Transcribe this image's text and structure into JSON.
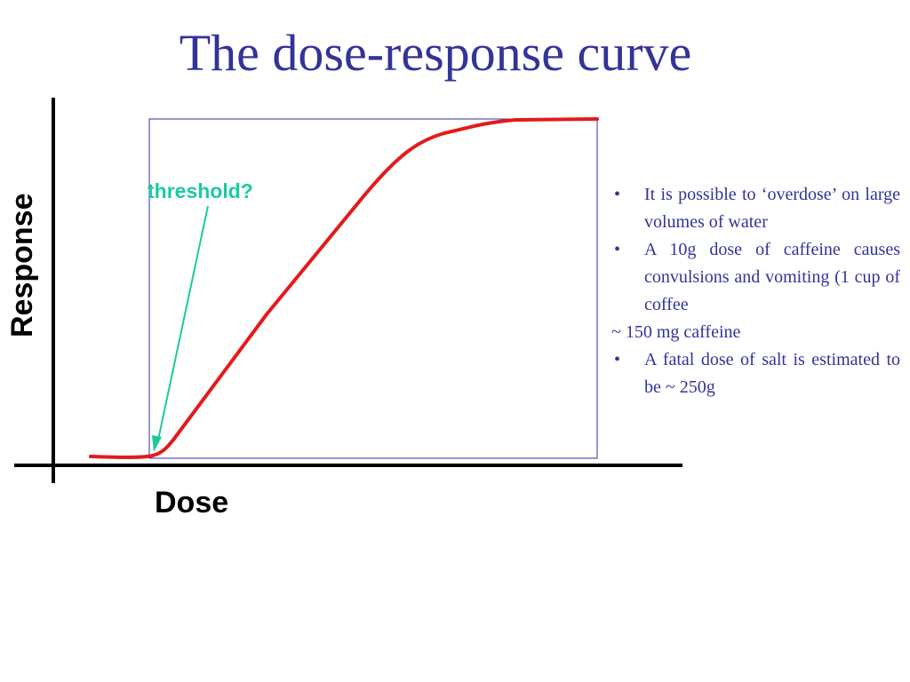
{
  "title": "The dose-response curve",
  "axes": {
    "x_label": "Dose",
    "y_label": "Response"
  },
  "annotation": {
    "label": "threshold?"
  },
  "notes": [
    {
      "bullet": "•",
      "text": "It is possible to ‘overdose’ on large volumes of water"
    },
    {
      "bullet": "•",
      "text": "A 10g dose of caffeine causes convulsions and vomiting (1 cup of coffee"
    },
    {
      "bullet": "",
      "text": "~ 150 mg caffeine"
    },
    {
      "bullet": "•",
      "text": "A fatal dose of salt is estimated to be ~ 250g"
    }
  ],
  "colors": {
    "title": "#333399",
    "curve": "#e31a1c",
    "annotation": "#1ec9a0",
    "notes": "#333399",
    "frame": "#333399",
    "axes": "#000000"
  }
}
